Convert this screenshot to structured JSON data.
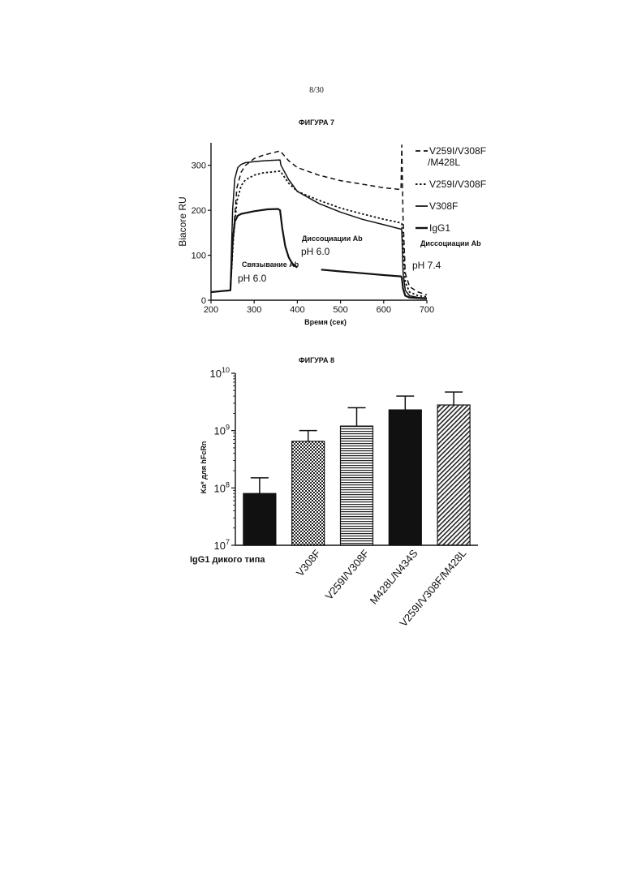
{
  "page_number": "8/30",
  "chart_data": [
    {
      "type": "line",
      "title": "ФИГУРА 7",
      "xlabel": "Время (сек)",
      "ylabel": "Biacore RU",
      "xlim": [
        200,
        700
      ],
      "ylim": [
        0,
        350
      ],
      "x_ticks": [
        200,
        300,
        400,
        500,
        600,
        700
      ],
      "y_ticks": [
        0,
        100,
        200,
        300
      ],
      "legend_position": "right",
      "series": [
        {
          "name": "V259I/V308F /M428L",
          "legend_lines": [
            "V259I/V308F",
            "/M428L"
          ],
          "style": "dashed",
          "x": [
            200,
            245,
            252,
            260,
            270,
            280,
            300,
            320,
            340,
            360,
            362,
            380,
            400,
            450,
            500,
            550,
            600,
            640,
            642,
            645,
            650,
            660,
            680,
            700
          ],
          "y": [
            18,
            22,
            150,
            250,
            285,
            300,
            315,
            322,
            327,
            332,
            330,
            310,
            295,
            278,
            266,
            258,
            250,
            246,
            345,
            180,
            60,
            30,
            18,
            12
          ]
        },
        {
          "name": "V259I/V308F",
          "legend_lines": [
            "V259I/V308F"
          ],
          "style": "dotted",
          "x": [
            200,
            245,
            252,
            260,
            270,
            280,
            300,
            320,
            340,
            360,
            362,
            380,
            400,
            450,
            500,
            550,
            600,
            640,
            642,
            645,
            650,
            660,
            680,
            700
          ],
          "y": [
            18,
            22,
            140,
            220,
            255,
            268,
            278,
            283,
            285,
            287,
            285,
            260,
            242,
            222,
            205,
            192,
            180,
            172,
            170,
            120,
            40,
            18,
            10,
            8
          ]
        },
        {
          "name": "V308F",
          "legend_lines": [
            "V308F"
          ],
          "style": "solid",
          "x": [
            200,
            245,
            250,
            255,
            262,
            270,
            280,
            300,
            320,
            340,
            360,
            362,
            380,
            400,
            450,
            500,
            550,
            600,
            640,
            642,
            645,
            650,
            660,
            680,
            700
          ],
          "y": [
            18,
            22,
            200,
            270,
            295,
            302,
            306,
            308,
            310,
            311,
            312,
            300,
            268,
            242,
            215,
            196,
            180,
            168,
            158,
            155,
            60,
            22,
            10,
            6,
            5
          ]
        },
        {
          "name": "IgG1",
          "legend_lines": [
            "IgG1"
          ],
          "style": "solid-bold",
          "x": [
            200,
            245,
            250,
            255,
            262,
            270,
            300,
            330,
            355,
            360,
            365,
            372,
            380,
            388,
            395,
            400,
            null,
            455,
            500,
            550,
            600,
            640,
            642,
            645,
            650,
            660,
            700
          ],
          "y": [
            18,
            22,
            130,
            175,
            188,
            192,
            198,
            202,
            203,
            200,
            160,
            120,
            95,
            82,
            76,
            73,
            null,
            68,
            64,
            60,
            56,
            53,
            50,
            25,
            10,
            6,
            4
          ]
        }
      ],
      "annotations": [
        {
          "text": "Диссоциации Ab",
          "bold": true
        },
        {
          "text": "pH 6.0",
          "bold": false
        },
        {
          "text": "Связывание Ab",
          "bold": true
        },
        {
          "text": "pH 6.0",
          "bold": false
        },
        {
          "text": "Диссоциации Ab",
          "bold": true
        },
        {
          "text": "pH 7.4",
          "bold": false
        }
      ]
    },
    {
      "type": "bar",
      "title": "ФИГУРА 8",
      "xlabel": "",
      "ylabel": "Ka* для hFcRn",
      "yscale": "log",
      "ylim": [
        10000000,
        10000000000
      ],
      "y_ticks": [
        10000000,
        100000000,
        1000000000,
        10000000000
      ],
      "y_tick_labels": [
        {
          "base": "10",
          "exp": "7"
        },
        {
          "base": "10",
          "exp": "8"
        },
        {
          "base": "10",
          "exp": "9"
        },
        {
          "base": "10",
          "exp": "10"
        }
      ],
      "categories": [
        "IgG1 дикого типа",
        "V308F",
        "V259I/V308F",
        "M428L/N434S",
        "V259I/V308F/M428L"
      ],
      "values": [
        80000000,
        650000000,
        1200000000,
        2300000000,
        2800000000
      ],
      "error_upper": [
        150000000,
        1000000000,
        2500000000,
        4000000000,
        4700000000
      ],
      "patterns": [
        "solid",
        "checker",
        "horizontal-lines",
        "solid",
        "diagonal-lines"
      ]
    }
  ]
}
